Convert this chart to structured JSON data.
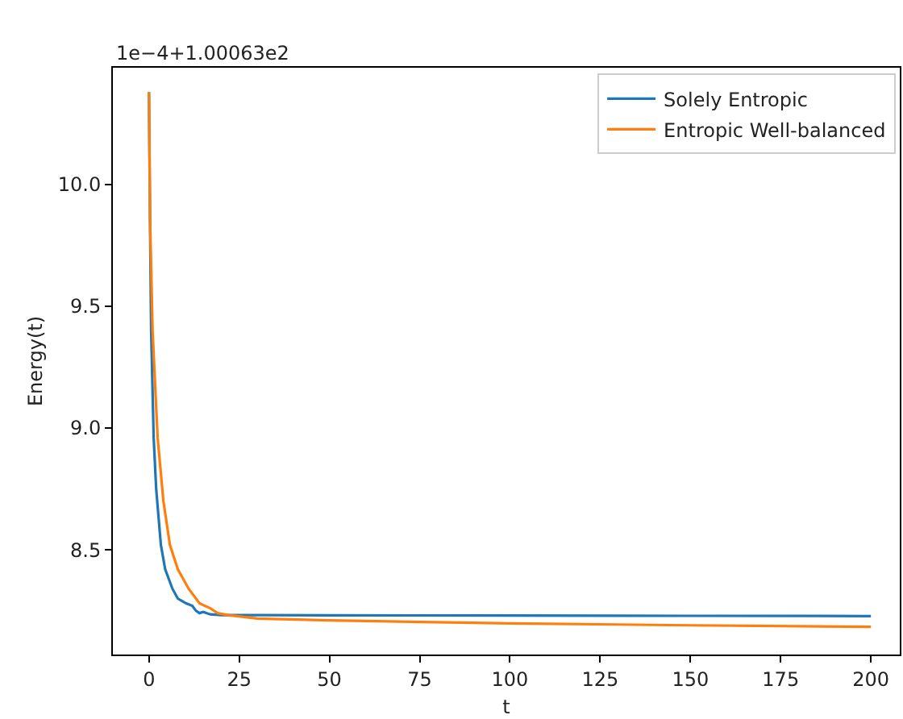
{
  "chart_data": {
    "type": "line",
    "xlabel": "t",
    "ylabel": "Energy(t)",
    "annotations": [
      "1e−4+1.00063e2"
    ],
    "xlim": [
      -10,
      208
    ],
    "xticks": [
      0,
      25,
      50,
      75,
      100,
      125,
      150,
      175,
      200
    ],
    "ylim": [
      8.07,
      10.48
    ],
    "yticks": [
      {
        "value": 8.5,
        "label": "8.5"
      },
      {
        "value": 9.0,
        "label": "9.0"
      },
      {
        "value": 9.5,
        "label": "9.5"
      },
      {
        "value": 10.0,
        "label": "10.0"
      }
    ],
    "grid": false,
    "legend": "top right",
    "marker": "none",
    "line_style": "solid",
    "series": [
      {
        "name": "Solely Entropic",
        "color": "#1f77b4",
        "x": [
          0,
          0.3,
          0.6,
          1.3,
          2,
          3.3,
          4.5,
          6.5,
          8,
          10.3,
          12,
          13,
          14,
          15,
          17,
          20,
          30,
          50,
          100,
          150,
          200
        ],
        "values": [
          10.38,
          9.84,
          9.4,
          8.96,
          8.75,
          8.52,
          8.42,
          8.34,
          8.3,
          8.28,
          8.27,
          8.25,
          8.24,
          8.245,
          8.235,
          8.232,
          8.232,
          8.231,
          8.23,
          8.229,
          8.228
        ]
      },
      {
        "name": "Entropic Well-balanced",
        "color": "#ff7f0e",
        "x": [
          0,
          0.3,
          1,
          2.4,
          4,
          5.8,
          8,
          11,
          14,
          17,
          19,
          22,
          30,
          50,
          100,
          150,
          200
        ],
        "values": [
          10.38,
          9.86,
          9.4,
          8.96,
          8.7,
          8.52,
          8.42,
          8.34,
          8.28,
          8.26,
          8.24,
          8.232,
          8.218,
          8.21,
          8.198,
          8.19,
          8.184
        ]
      }
    ]
  }
}
